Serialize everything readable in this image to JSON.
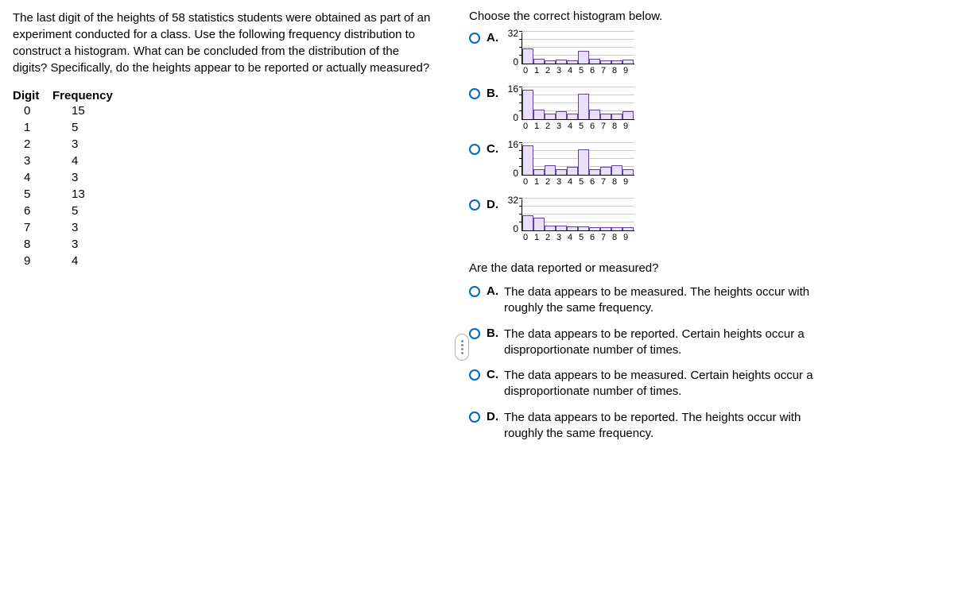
{
  "question": {
    "text": "The last digit of the heights of 58 statistics students  were obtained as part of an experiment conducted for a class. Use the following frequency distribution to construct a histogram.\nWhat can be concluded from the distribution of the digits? Specifically, do the heights appear to be reported or actually measured?"
  },
  "freq_table": {
    "header_digit": "Digit",
    "header_freq": "Frequency",
    "rows": [
      {
        "digit": "0",
        "freq": "15"
      },
      {
        "digit": "1",
        "freq": "5"
      },
      {
        "digit": "2",
        "freq": "3"
      },
      {
        "digit": "3",
        "freq": "4"
      },
      {
        "digit": "4",
        "freq": "3"
      },
      {
        "digit": "5",
        "freq": "13"
      },
      {
        "digit": "6",
        "freq": "5"
      },
      {
        "digit": "7",
        "freq": "3"
      },
      {
        "digit": "8",
        "freq": "3"
      },
      {
        "digit": "9",
        "freq": "4"
      }
    ]
  },
  "prompt1": "Choose the correct histogram below.",
  "histograms": {
    "xlabels": [
      "0",
      "1",
      "2",
      "3",
      "4",
      "5",
      "6",
      "7",
      "8",
      "9"
    ],
    "bar_color": "#e8e0f8",
    "bar_border": "#6040a0",
    "options": [
      {
        "label": "A.",
        "ymax": 32,
        "ymax_label": "32",
        "ymin_label": "0",
        "values": [
          15,
          5,
          3,
          4,
          3,
          13,
          5,
          3,
          3,
          4
        ],
        "gridlines": [
          8,
          16,
          24,
          32
        ]
      },
      {
        "label": "B.",
        "ymax": 16,
        "ymax_label": "16",
        "ymin_label": "0",
        "values": [
          15,
          5,
          3,
          4,
          3,
          13,
          5,
          3,
          3,
          4
        ],
        "gridlines": [
          4,
          8,
          12,
          16
        ]
      },
      {
        "label": "C.",
        "ymax": 16,
        "ymax_label": "16",
        "ymin_label": "0",
        "values": [
          15,
          3,
          5,
          3,
          4,
          13,
          3,
          4,
          5,
          3
        ],
        "gridlines": [
          4,
          8,
          12,
          16
        ]
      },
      {
        "label": "D.",
        "ymax": 32,
        "ymax_label": "32",
        "ymin_label": "0",
        "values": [
          15,
          13,
          5,
          5,
          4,
          4,
          3,
          3,
          3,
          3
        ],
        "gridlines": [
          8,
          16,
          24,
          32
        ]
      }
    ]
  },
  "prompt2": "Are the data reported or measured?",
  "text_options": [
    {
      "label": "A.",
      "text": "The data appears to be measured. The heights occur with roughly the same frequency."
    },
    {
      "label": "B.",
      "text": "The data appears to be reported. Certain heights occur a disproportionate number of times."
    },
    {
      "label": "C.",
      "text": "The data appears to be measured. Certain heights occur a disproportionate number of times."
    },
    {
      "label": "D.",
      "text": "The data appears to be reported. The heights occur with roughly the same frequency."
    }
  ]
}
